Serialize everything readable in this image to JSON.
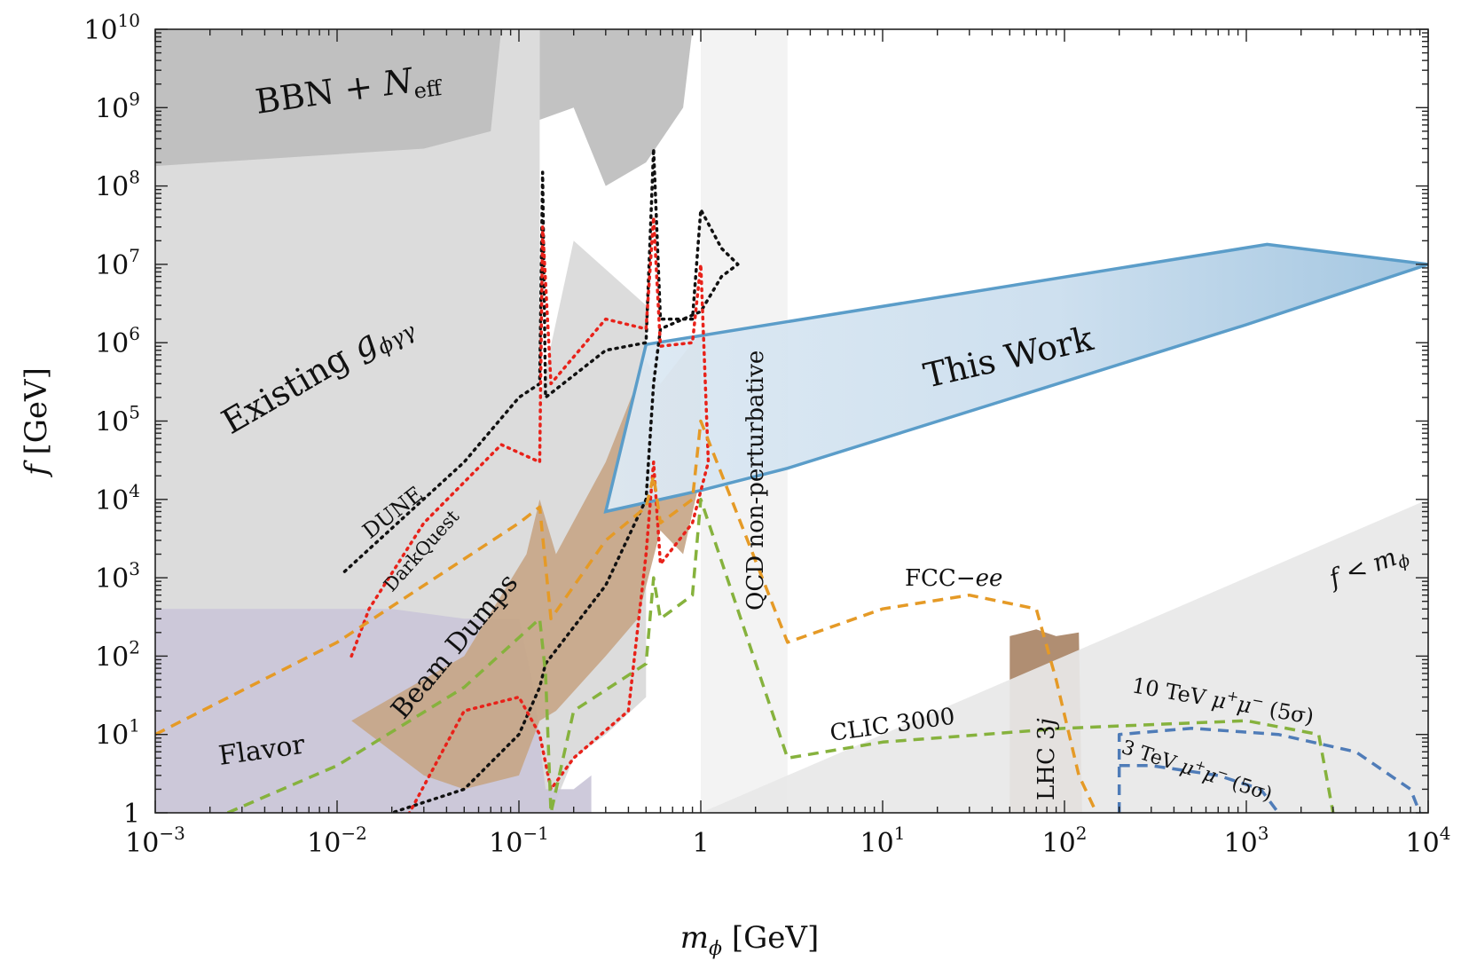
{
  "chart_data": {
    "type": "area",
    "xlabel": "m_φ [GeV]",
    "ylabel": "f [GeV]",
    "xscale": "log",
    "yscale": "log",
    "xlim": [
      0.001,
      10000
    ],
    "ylim": [
      1,
      10000000000
    ],
    "x_ticks": [
      {
        "value": 0.001,
        "base": "10",
        "exp": "−3"
      },
      {
        "value": 0.01,
        "base": "10",
        "exp": "−2"
      },
      {
        "value": 0.1,
        "base": "10",
        "exp": "−1"
      },
      {
        "value": 1,
        "base": "1",
        "exp": ""
      },
      {
        "value": 10,
        "base": "10",
        "exp": "1"
      },
      {
        "value": 100,
        "base": "10",
        "exp": "2"
      },
      {
        "value": 1000,
        "base": "10",
        "exp": "3"
      },
      {
        "value": 10000,
        "base": "10",
        "exp": "4"
      }
    ],
    "y_ticks": [
      {
        "value": 1,
        "base": "1",
        "exp": ""
      },
      {
        "value": 10,
        "base": "10",
        "exp": "1"
      },
      {
        "value": 100,
        "base": "10",
        "exp": "2"
      },
      {
        "value": 1000,
        "base": "10",
        "exp": "3"
      },
      {
        "value": 10000,
        "base": "10",
        "exp": "4"
      },
      {
        "value": 100000,
        "base": "10",
        "exp": "5"
      },
      {
        "value": 1000000,
        "base": "10",
        "exp": "6"
      },
      {
        "value": 10000000,
        "base": "10",
        "exp": "7"
      },
      {
        "value": 100000000,
        "base": "10",
        "exp": "8"
      },
      {
        "value": 1000000000,
        "base": "10",
        "exp": "9"
      },
      {
        "value": 10000000000,
        "base": "10",
        "exp": "10"
      }
    ],
    "regions": [
      {
        "name": "Existing g_φγγ",
        "color": "#d9d9d9",
        "points": [
          [
            0.001,
            10000000000
          ],
          [
            0.13,
            10000000000
          ],
          [
            0.13,
            200000
          ],
          [
            0.2,
            20000000
          ],
          [
            0.5,
            3000000
          ],
          [
            0.5,
            30
          ],
          [
            0.3,
            10
          ],
          [
            0.2,
            5
          ],
          [
            0.15,
            1
          ],
          [
            0.001,
            1
          ]
        ]
      },
      {
        "name": "BBN + N_eff",
        "color": "#bdbdbd",
        "points": [
          [
            0.001,
            10000000000
          ],
          [
            0.9,
            10000000000
          ],
          [
            0.8,
            1000000000
          ],
          [
            0.5,
            200000000
          ],
          [
            0.3,
            100000000
          ],
          [
            0.2,
            1000000000
          ],
          [
            0.13,
            700000000
          ],
          [
            0.13,
            10000000000
          ],
          [
            0.08,
            10000000000
          ],
          [
            0.07,
            500000000
          ],
          [
            0.03,
            300000000
          ],
          [
            0.001,
            180000000
          ]
        ]
      },
      {
        "name": "Flavor",
        "color": "#cac6d8",
        "points": [
          [
            0.001,
            400
          ],
          [
            0.02,
            400
          ],
          [
            0.05,
            300
          ],
          [
            0.1,
            300
          ],
          [
            0.12,
            40
          ],
          [
            0.14,
            2
          ],
          [
            0.2,
            2
          ],
          [
            0.25,
            3
          ],
          [
            0.25,
            1
          ],
          [
            0.001,
            1
          ]
        ]
      },
      {
        "name": "Beam Dumps",
        "color": "#c7a688",
        "points": [
          [
            0.012,
            15
          ],
          [
            0.05,
            100
          ],
          [
            0.11,
            2000
          ],
          [
            0.13,
            10000
          ],
          [
            0.16,
            2000
          ],
          [
            0.3,
            30000
          ],
          [
            0.5,
            600000
          ],
          [
            0.6,
            300000
          ],
          [
            0.9,
            1000000
          ],
          [
            1.1,
            1500000
          ],
          [
            1,
            20000
          ],
          [
            0.8,
            2000
          ],
          [
            0.6,
            4000
          ],
          [
            0.45,
            300
          ],
          [
            0.3,
            100
          ],
          [
            0.16,
            20
          ],
          [
            0.13,
            15
          ],
          [
            0.1,
            3
          ],
          [
            0.05,
            2
          ],
          [
            0.03,
            3
          ],
          [
            0.012,
            15
          ]
        ]
      },
      {
        "name": "LHC 3j",
        "color": "#a98466",
        "points": [
          [
            50,
            180
          ],
          [
            70,
            220
          ],
          [
            90,
            180
          ],
          [
            120,
            200
          ],
          [
            125,
            1
          ],
          [
            50,
            1
          ]
        ]
      },
      {
        "name": "QCD non-perturbative",
        "color": "#f2f2f2",
        "points": [
          [
            1,
            10000000000
          ],
          [
            3,
            10000000000
          ],
          [
            3,
            1
          ],
          [
            1,
            1
          ]
        ]
      },
      {
        "name": "f < m_φ",
        "color": "#e8e8e8",
        "points": [
          [
            1,
            1
          ],
          [
            10000,
            10000
          ],
          [
            10000,
            1
          ]
        ]
      },
      {
        "name": "This Work",
        "color": "#a9cbe3",
        "edge": "#5b9dc9",
        "points": [
          [
            0.5,
            950000
          ],
          [
            1300,
            18000000
          ],
          [
            10000,
            10000000
          ],
          [
            1000,
            1700000
          ],
          [
            3,
            25000
          ],
          [
            1,
            13000
          ],
          [
            0.3,
            7000
          ],
          [
            0.5,
            950000
          ]
        ]
      }
    ],
    "series": [
      {
        "name": "DUNE",
        "style": "dotted",
        "color": "#111111",
        "x": [
          0.011,
          0.05,
          0.1,
          0.13,
          0.135,
          0.14,
          0.3,
          0.5,
          0.55,
          0.6,
          0.9,
          1,
          1.3,
          1.6,
          1.3,
          1,
          0.6,
          0.55,
          0.5,
          0.3,
          0.14,
          0.13,
          0.1,
          0.05,
          0.02
        ],
        "y": [
          1200,
          30000,
          200000,
          300000,
          150000000,
          200000,
          800000,
          1000000,
          300000000,
          2000000,
          2000000,
          50000000,
          16000000,
          10000000,
          7000000,
          2500000,
          1500000,
          300000,
          10000,
          800,
          80,
          40,
          10,
          2,
          1
        ]
      },
      {
        "name": "DarkQuest",
        "style": "dotted",
        "color": "#e8221a",
        "x": [
          0.012,
          0.015,
          0.03,
          0.08,
          0.13,
          0.135,
          0.15,
          0.3,
          0.5,
          0.55,
          0.6,
          0.9,
          1,
          1.1,
          0.9,
          0.6,
          0.55,
          0.5,
          0.4,
          0.2,
          0.15,
          0.13,
          0.1,
          0.05,
          0.025
        ],
        "y": [
          100,
          400,
          5000,
          50000,
          30000,
          30000000,
          300000,
          2000000,
          1500000,
          40000000,
          900000,
          1000000,
          10000000,
          30000,
          5000,
          1500,
          30000,
          2000,
          20,
          5,
          2,
          10,
          30,
          20,
          1
        ]
      },
      {
        "name": "FCC-ee",
        "style": "dashed",
        "color": "#e59a26",
        "x": [
          0.001,
          0.01,
          0.1,
          0.13,
          0.15,
          0.3,
          0.5,
          0.55,
          0.6,
          0.9,
          1,
          3,
          10,
          30,
          70,
          90,
          120,
          150
        ],
        "y": [
          10,
          150,
          5000,
          8000,
          300,
          3000,
          8000,
          20000,
          5000,
          10000,
          100000,
          150,
          400,
          600,
          400,
          50,
          3,
          1
        ]
      },
      {
        "name": "CLIC 3000",
        "style": "dashed",
        "color": "#86b23d",
        "x": [
          0.0025,
          0.01,
          0.05,
          0.13,
          0.14,
          0.15,
          0.2,
          0.5,
          0.55,
          0.6,
          0.9,
          1,
          3,
          10,
          100,
          1000,
          2500,
          3000
        ],
        "y": [
          1,
          4,
          40,
          300,
          60,
          1,
          20,
          80,
          1000,
          300,
          600,
          10000,
          5,
          8,
          12,
          15,
          10,
          1
        ]
      },
      {
        "name": "10 TeV μ⁺μ⁻ (5σ)",
        "style": "dashed",
        "color": "#4f7cb8",
        "x": [
          200,
          200,
          500,
          1500,
          4000,
          8000,
          9000
        ],
        "y": [
          1,
          10,
          12,
          10,
          6,
          2,
          1
        ]
      },
      {
        "name": "3 TeV μ⁺μ⁻ (5σ)",
        "style": "dashed",
        "color": "#4f7cb8",
        "x": [
          200,
          300,
          700,
          1200,
          1500
        ],
        "y": [
          4,
          4,
          3,
          2,
          1
        ]
      }
    ]
  },
  "labels": {
    "bbn_prefix": "BBN + ",
    "bbn_n": "N",
    "bbn_sub": "eff",
    "existing_prefix": "Existing ",
    "existing_g": "g",
    "existing_sub": "ϕγγ",
    "flavor": "Flavor",
    "beam_dumps": "Beam Dumps",
    "dune": "DUNE",
    "darkquest": "DarkQuest",
    "qcd": "QCD non-perturbative",
    "this_work": "This Work",
    "fcc_prefix": "FCC−",
    "fcc_ee": "ee",
    "clic": "CLIC 3000",
    "lhc_prefix": "LHC 3",
    "lhc_j": "j",
    "f_lt_m_f": "f",
    "f_lt_m_lt": " < ",
    "f_lt_m_m": "m",
    "f_lt_m_sub": "ϕ",
    "mu10_prefix": "10 TeV ",
    "mu10_mu1": "μ",
    "mu10_sup1": "+",
    "mu10_mu2": "μ",
    "mu10_sup2": "−",
    "mu10_suffix": " (5σ)",
    "mu3_prefix": "3 TeV ",
    "mu3_mu1": "μ",
    "mu3_sup1": "+",
    "mu3_mu2": "μ",
    "mu3_sup2": "−",
    "mu3_suffix": " (5σ)",
    "xlabel_m": "m",
    "xlabel_sub": "ϕ",
    "xlabel_unit": " [GeV]",
    "ylabel_f": "f",
    "ylabel_unit": " [GeV]"
  }
}
